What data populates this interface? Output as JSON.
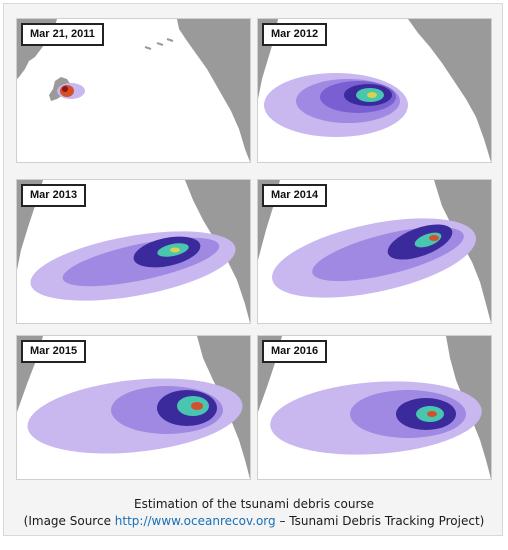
{
  "panels": [
    {
      "label": "Mar 21, 2011"
    },
    {
      "label": "Mar 2012"
    },
    {
      "label": "Mar 2013"
    },
    {
      "label": "Mar 2014"
    },
    {
      "label": "Mar 2015"
    },
    {
      "label": "Mar 2016"
    }
  ],
  "caption": {
    "line1": "Estimation of the tsunami debris course",
    "line2_prefix": "(Image Source ",
    "link_text": "http://www.oceanrecov.org",
    "line2_suffix": " – Tsunami Debris Tracking Project)"
  },
  "colors": {
    "land": "#9a9a9a",
    "ocean": "#ffffff",
    "debris_low": "#c9b8f0",
    "debris_mid": "#7a5fd3",
    "debris_dense": "#3b2a9c",
    "debris_core": "#49c6b0",
    "debris_peak": "#d4502a",
    "link": "#1a6fb5"
  }
}
